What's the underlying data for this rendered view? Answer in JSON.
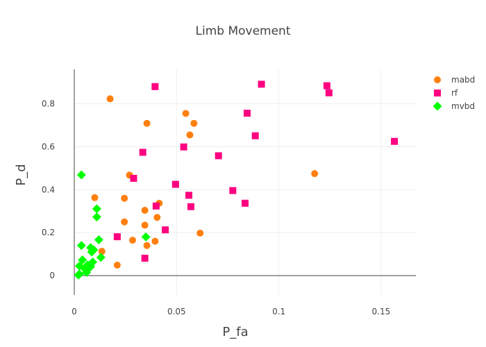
{
  "chart_data": {
    "type": "scatter",
    "title": "Limb Movement",
    "xlabel": "P_fa",
    "ylabel": "P_d",
    "xlim": [
      0,
      0.167
    ],
    "ylim": [
      -0.09,
      0.96
    ],
    "x_ticks": [
      0,
      0.05,
      0.1,
      0.15
    ],
    "x_tick_labels": [
      "0",
      "0.05",
      "0.1",
      "0.15"
    ],
    "y_ticks": [
      0,
      0.2,
      0.4,
      0.6,
      0.8
    ],
    "y_tick_labels": [
      "0",
      "0.2",
      "0.4",
      "0.6",
      "0.8"
    ],
    "grid": true,
    "legend_position": "top-right",
    "series": [
      {
        "name": "mabd",
        "marker": "circle",
        "color": "#ff7f0e",
        "points": [
          [
            0.0175,
            0.823
          ],
          [
            0.0545,
            0.755
          ],
          [
            0.0355,
            0.709
          ],
          [
            0.0585,
            0.709
          ],
          [
            0.0565,
            0.655
          ],
          [
            0.027,
            0.468
          ],
          [
            0.1175,
            0.475
          ],
          [
            0.01,
            0.363
          ],
          [
            0.0245,
            0.36
          ],
          [
            0.0415,
            0.337
          ],
          [
            0.0345,
            0.304
          ],
          [
            0.0405,
            0.271
          ],
          [
            0.0245,
            0.25
          ],
          [
            0.0345,
            0.235
          ],
          [
            0.0615,
            0.198
          ],
          [
            0.0135,
            0.113
          ],
          [
            0.0285,
            0.165
          ],
          [
            0.0395,
            0.16
          ],
          [
            0.0355,
            0.14
          ],
          [
            0.021,
            0.049
          ]
        ]
      },
      {
        "name": "rf",
        "marker": "square",
        "color": "#ff0080",
        "points": [
          [
            0.0395,
            0.88
          ],
          [
            0.0915,
            0.891
          ],
          [
            0.1235,
            0.884
          ],
          [
            0.1245,
            0.851
          ],
          [
            0.0845,
            0.756
          ],
          [
            0.0885,
            0.651
          ],
          [
            0.0335,
            0.574
          ],
          [
            0.0535,
            0.599
          ],
          [
            0.0705,
            0.558
          ],
          [
            0.1565,
            0.625
          ],
          [
            0.029,
            0.453
          ],
          [
            0.0495,
            0.425
          ],
          [
            0.0775,
            0.396
          ],
          [
            0.056,
            0.374
          ],
          [
            0.0835,
            0.337
          ],
          [
            0.04,
            0.324
          ],
          [
            0.057,
            0.321
          ],
          [
            0.0445,
            0.213
          ],
          [
            0.021,
            0.181
          ],
          [
            0.0345,
            0.081
          ]
        ]
      },
      {
        "name": "mvbd",
        "marker": "diamond",
        "color": "#00ff00",
        "points": [
          [
            0.0035,
            0.469
          ],
          [
            0.011,
            0.311
          ],
          [
            0.011,
            0.273
          ],
          [
            0.0035,
            0.14
          ],
          [
            0.035,
            0.18
          ],
          [
            0.012,
            0.167
          ],
          [
            0.008,
            0.13
          ],
          [
            0.0095,
            0.12
          ],
          [
            0.0085,
            0.11
          ],
          [
            0.013,
            0.085
          ],
          [
            0.004,
            0.073
          ],
          [
            0.009,
            0.063
          ],
          [
            0.0065,
            0.05
          ],
          [
            0.0025,
            0.045
          ],
          [
            0.008,
            0.042
          ],
          [
            0.005,
            0.033
          ],
          [
            0.0075,
            0.038
          ],
          [
            0.006,
            0.015
          ],
          [
            0.0025,
            0.007
          ],
          [
            0.002,
            0.003
          ]
        ]
      }
    ]
  }
}
